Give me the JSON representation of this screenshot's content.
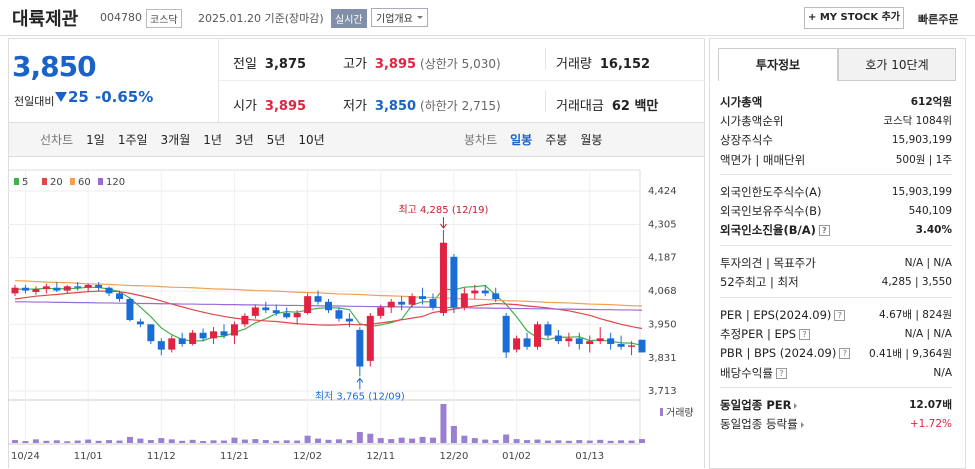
{
  "header": {
    "name": "대륙제관",
    "code": "004780",
    "market": "코스닥",
    "date": "2025.01.20 기준(장마감)",
    "realtime": "실시간",
    "company": "기업개요",
    "mystock": "+ MY STOCK 추가",
    "quick_order": "빠른주문"
  },
  "price": {
    "current": "3,850",
    "change_label": "전일대비",
    "change": "25",
    "change_pct": "-0.65%"
  },
  "quote": [
    {
      "label": "전일",
      "value": "3,875"
    },
    {
      "label": "고가",
      "value": "3,895",
      "note": "(상한가 5,030)"
    },
    {
      "label": "거래량",
      "value": "16,152"
    },
    {
      "label": "시가",
      "value": "3,895"
    },
    {
      "label": "저가",
      "value": "3,850",
      "note": "(하한가 2,715)"
    },
    {
      "label": "거래대금",
      "value": "62 백만"
    }
  ],
  "tabs": {
    "line": [
      "선차트",
      "1일",
      "1주일",
      "3개월",
      "1년",
      "3년",
      "5년",
      "10년"
    ],
    "candle": [
      "봉차트",
      "일봉",
      "주봉",
      "월봉"
    ]
  },
  "chart": {
    "type": "candlestick",
    "up_color": "#e12343",
    "down_color": "#1a6dd6",
    "volume_color": "#9b7fd0",
    "volume_label": "거래량",
    "high_label": "최고 4,285 (12/19)",
    "low_label": "최저 3,765 (12/09)",
    "ylim": [
      3688,
      4463
    ],
    "yticks": [
      {
        "value": 4424,
        "label": "4,424"
      },
      {
        "value": 4305,
        "label": "4,305"
      },
      {
        "value": 4187,
        "label": "4,187"
      },
      {
        "value": 4068,
        "label": "4,068"
      },
      {
        "value": 3950,
        "label": "3,950"
      },
      {
        "value": 3831,
        "label": "3,831"
      },
      {
        "value": 3713,
        "label": "3,713"
      }
    ],
    "categories": [
      null,
      "10/24",
      null,
      null,
      null,
      null,
      null,
      "11/01",
      null,
      null,
      null,
      null,
      null,
      null,
      "11/12",
      null,
      null,
      null,
      null,
      null,
      null,
      "11/21",
      null,
      null,
      null,
      null,
      null,
      null,
      "12/02",
      null,
      null,
      null,
      null,
      null,
      null,
      "12/11",
      null,
      null,
      null,
      null,
      null,
      null,
      "12/20",
      null,
      null,
      null,
      null,
      null,
      "01/02",
      null,
      null,
      null,
      null,
      null,
      null,
      "01/13",
      null,
      null,
      null,
      null,
      null
    ],
    "open": [
      4060,
      4080,
      4065,
      4075,
      4080,
      4070,
      4085,
      4080,
      4090,
      4080,
      4060,
      4040,
      3960,
      3950,
      3890,
      3860,
      3900,
      3880,
      3920,
      3900,
      3925,
      3910,
      3950,
      3980,
      4010,
      4000,
      3990,
      3975,
      3990,
      4050,
      4030,
      4000,
      3970,
      3930,
      3820,
      3980,
      4010,
      4030,
      4020,
      4050,
      4040,
      3990,
      4190,
      4010,
      4060,
      4070,
      4060,
      3980,
      3860,
      3900,
      3870,
      3950,
      3910,
      3890,
      3900,
      3880,
      3890,
      3900,
      3880,
      3870,
      3895
    ],
    "high": [
      4090,
      4090,
      4085,
      4095,
      4100,
      4090,
      4100,
      4095,
      4100,
      4085,
      4070,
      4045,
      3970,
      3950,
      3900,
      3910,
      3920,
      3930,
      3935,
      3940,
      3950,
      3960,
      3990,
      4020,
      4030,
      4020,
      4010,
      4000,
      4060,
      4070,
      4040,
      4010,
      3990,
      3940,
      3990,
      4020,
      4040,
      4050,
      4060,
      4080,
      4060,
      4285,
      4200,
      4080,
      4090,
      4090,
      4080,
      3990,
      3910,
      3920,
      3960,
      3960,
      3930,
      3920,
      3920,
      3910,
      3940,
      3920,
      3910,
      3890,
      3895
    ],
    "low": [
      4050,
      4060,
      4055,
      4060,
      4065,
      4060,
      4070,
      4065,
      4070,
      4050,
      4030,
      3960,
      3940,
      3880,
      3840,
      3850,
      3870,
      3875,
      3890,
      3880,
      3900,
      3880,
      3940,
      3970,
      3990,
      3980,
      3970,
      3950,
      3985,
      4020,
      3990,
      3960,
      3940,
      3765,
      3800,
      3970,
      3990,
      4000,
      4010,
      4020,
      4000,
      3980,
      3990,
      4000,
      4040,
      4050,
      4030,
      3830,
      3850,
      3860,
      3860,
      3900,
      3880,
      3870,
      3860,
      3850,
      3880,
      3860,
      3860,
      3840,
      3850
    ],
    "close": [
      4080,
      4070,
      4075,
      4085,
      4070,
      4085,
      4080,
      4090,
      4080,
      4060,
      4040,
      3965,
      3950,
      3890,
      3860,
      3900,
      3880,
      3920,
      3900,
      3925,
      3910,
      3950,
      3980,
      4010,
      4000,
      3990,
      3975,
      3990,
      4050,
      4030,
      4000,
      3970,
      3960,
      3800,
      3980,
      4010,
      4030,
      4020,
      4050,
      4040,
      4010,
      4240,
      4010,
      4060,
      4070,
      4060,
      4040,
      3850,
      3900,
      3870,
      3950,
      3910,
      3890,
      3900,
      3880,
      3890,
      3900,
      3880,
      3870,
      3875,
      3850
    ],
    "volume": [
      12000,
      8000,
      15000,
      9000,
      11000,
      7000,
      10000,
      14000,
      9000,
      12000,
      10000,
      25000,
      18000,
      12000,
      20000,
      15000,
      9000,
      13000,
      8000,
      11000,
      10000,
      22000,
      14000,
      16000,
      12000,
      9000,
      11000,
      10000,
      30000,
      18000,
      13000,
      15000,
      12000,
      45000,
      38000,
      20000,
      16000,
      22000,
      18000,
      25000,
      22000,
      160000,
      70000,
      30000,
      20000,
      14000,
      12000,
      35000,
      16000,
      12000,
      14000,
      10000,
      11000,
      9000,
      12000,
      10000,
      13000,
      9000,
      11000,
      10000,
      16152
    ],
    "ma": [
      {
        "name": "5",
        "color": "#43b04a",
        "values": [
          4075,
          4075,
          4075,
          4078,
          4076,
          4077,
          4078,
          4082,
          4081,
          4075,
          4066,
          4043,
          4011,
          3977,
          3937,
          3913,
          3896,
          3890,
          3892,
          3905,
          3907,
          3921,
          3933,
          3955,
          3970,
          3988,
          3995,
          3993,
          4001,
          4007,
          4009,
          4008,
          4002,
          3952,
          3942,
          3948,
          3956,
          3968,
          4018,
          4030,
          4030,
          4076,
          4072,
          4082,
          4084,
          4088,
          4053,
          4021,
          3977,
          3927,
          3902,
          3896,
          3904,
          3904,
          3906,
          3892,
          3894,
          3890,
          3884,
          3883,
          3875
        ]
      },
      {
        "name": "20",
        "color": "#e04848",
        "values": [
          4040,
          4045,
          4050,
          4053,
          4056,
          4060,
          4063,
          4066,
          4068,
          4068,
          4066,
          4060,
          4052,
          4043,
          4033,
          4022,
          4012,
          4002,
          3993,
          3985,
          3978,
          3972,
          3968,
          3965,
          3962,
          3960,
          3956,
          3952,
          3950,
          3948,
          3947,
          3948,
          3950,
          3948,
          3950,
          3955,
          3960,
          3966,
          3972,
          3978,
          3992,
          3998,
          4004,
          4010,
          4015,
          4020,
          4024,
          4022,
          4020,
          4015,
          4012,
          4008,
          4003,
          3998,
          3990,
          3982,
          3970,
          3960,
          3950,
          3942,
          3935
        ]
      },
      {
        "name": "60",
        "color": "#f0a050",
        "values": [
          4105,
          4104,
          4102,
          4100,
          4099,
          4098,
          4096,
          4094,
          4093,
          4092,
          4090,
          4088,
          4087,
          4086,
          4084,
          4082,
          4081,
          4080,
          4078,
          4076,
          4075,
          4074,
          4072,
          4070,
          4069,
          4068,
          4066,
          4064,
          4063,
          4062,
          4060,
          4058,
          4057,
          4056,
          4054,
          4052,
          4051,
          4050,
          4048,
          4046,
          4045,
          4044,
          4042,
          4040,
          4039,
          4038,
          4036,
          4034,
          4033,
          4032,
          4030,
          4028,
          4027,
          4026,
          4024,
          4022,
          4021,
          4020,
          4018,
          4016,
          4015
        ]
      },
      {
        "name": "120",
        "color": "#9a6bd6",
        "values": [
          4030,
          4030,
          4029,
          4029,
          4028,
          4028,
          4027,
          4027,
          4026,
          4026,
          4025,
          4025,
          4024,
          4024,
          4023,
          4023,
          4022,
          4022,
          4021,
          4021,
          4020,
          4020,
          4019,
          4019,
          4018,
          4018,
          4017,
          4017,
          4016,
          4016,
          4015,
          4015,
          4014,
          4014,
          4013,
          4013,
          4012,
          4012,
          4011,
          4011,
          4010,
          4010,
          4009,
          4009,
          4008,
          4008,
          4007,
          4007,
          4006,
          4006,
          4005,
          4005,
          4004,
          4004,
          4003,
          4003,
          4002,
          4002,
          4001,
          4001,
          4000
        ]
      }
    ]
  },
  "info": {
    "tabs": [
      "투자정보",
      "호가 10단계"
    ],
    "groups": [
      [
        {
          "label": "시가총액",
          "value": "612억원"
        },
        {
          "label": "시가총액순위",
          "value": "코스닥 1084위"
        },
        {
          "label": "상장주식수",
          "value": "15,903,199"
        },
        {
          "label": "액면가 | 매매단위",
          "value": "500원 | 1주"
        }
      ],
      [
        {
          "label": "외국인한도주식수(A)",
          "value": "15,903,199"
        },
        {
          "label": "외국인보유주식수(B)",
          "value": "540,109"
        },
        {
          "label": "외국인소진율(B/A)",
          "value": "3.40%"
        }
      ],
      [
        {
          "label": "투자의견 | 목표주가",
          "value": "N/A | N/A"
        },
        {
          "label": "52주최고 | 최저",
          "value": "4,285 | 3,550"
        }
      ],
      [
        {
          "label": "PER | EPS(2024.09)",
          "value": "4.67배 | 824원"
        },
        {
          "label": "추정PER | EPS",
          "value": "N/A | N/A"
        },
        {
          "label": "PBR | BPS (2024.09)",
          "value": "0.41배 | 9,364원"
        },
        {
          "label": "배당수익률",
          "value": "N/A"
        }
      ],
      [
        {
          "label": "동일업종 PER",
          "value": "12.07배"
        },
        {
          "label": "동일업종 등락률",
          "value": "+1.72%"
        }
      ]
    ]
  }
}
